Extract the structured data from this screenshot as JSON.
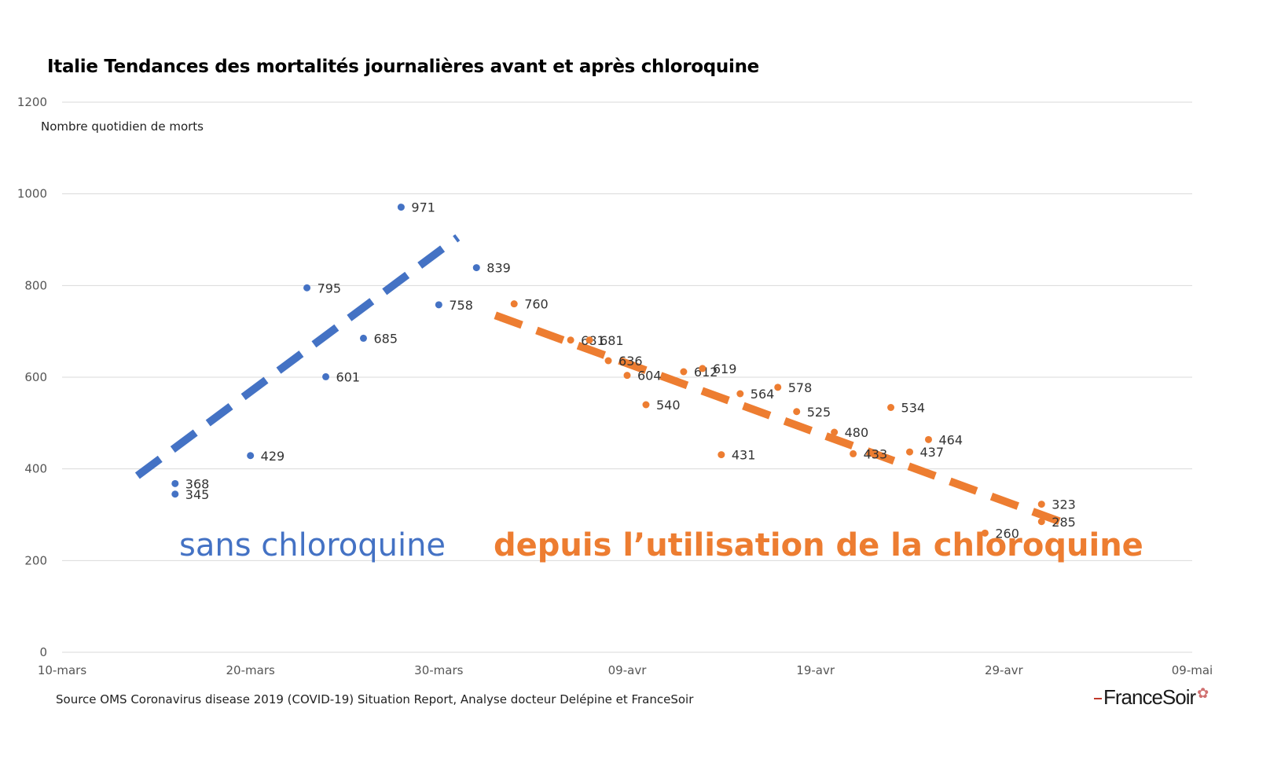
{
  "chart_data": {
    "type": "scatter",
    "title": "Italie Tendances des mortalités journalières avant et après chloroquine",
    "ylabel": "Nombre quotidien de morts",
    "xlabel": "",
    "source": "Source OMS Coronavirus disease 2019 (COVID-19) Situation Report, Analyse docteur Delépine et FranceSoir",
    "brand": "FranceSoir",
    "x_ticks": [
      "10-mars",
      "20-mars",
      "30-mars",
      "09-avr",
      "19-avr",
      "29-avr",
      "09-mai"
    ],
    "y_ticks": [
      "0",
      "200",
      "400",
      "600",
      "800",
      "1000",
      "1200"
    ],
    "xlim": [
      "2020-03-10",
      "2020-05-09"
    ],
    "ylim": [
      0,
      1200
    ],
    "grid": true,
    "series": [
      {
        "name": "sans chloroquine",
        "color": "#4472C4",
        "points": [
          {
            "x": "2020-03-16",
            "y": 368
          },
          {
            "x": "2020-03-16",
            "y": 345
          },
          {
            "x": "2020-03-20",
            "y": 429
          },
          {
            "x": "2020-03-23",
            "y": 795
          },
          {
            "x": "2020-03-24",
            "y": 601
          },
          {
            "x": "2020-03-26",
            "y": 685
          },
          {
            "x": "2020-03-28",
            "y": 971
          },
          {
            "x": "2020-03-30",
            "y": 758
          },
          {
            "x": "2020-04-01",
            "y": 839
          }
        ],
        "trend": {
          "from": {
            "x": "2020-03-14",
            "y": 385
          },
          "to": {
            "x": "2020-03-31",
            "y": 905
          }
        }
      },
      {
        "name": "depuis l’utilisation de la chloroquine",
        "color": "#ED7D31",
        "points": [
          {
            "x": "2020-04-03",
            "y": 760
          },
          {
            "x": "2020-04-06",
            "y": 681
          },
          {
            "x": "2020-04-07",
            "y": 681
          },
          {
            "x": "2020-04-08",
            "y": 636
          },
          {
            "x": "2020-04-09",
            "y": 604
          },
          {
            "x": "2020-04-10",
            "y": 540
          },
          {
            "x": "2020-04-12",
            "y": 612
          },
          {
            "x": "2020-04-13",
            "y": 619
          },
          {
            "x": "2020-04-14",
            "y": 431
          },
          {
            "x": "2020-04-15",
            "y": 564
          },
          {
            "x": "2020-04-17",
            "y": 578
          },
          {
            "x": "2020-04-18",
            "y": 525
          },
          {
            "x": "2020-04-20",
            "y": 480
          },
          {
            "x": "2020-04-21",
            "y": 433
          },
          {
            "x": "2020-04-23",
            "y": 534
          },
          {
            "x": "2020-04-24",
            "y": 437
          },
          {
            "x": "2020-04-25",
            "y": 464
          },
          {
            "x": "2020-04-28",
            "y": 260
          },
          {
            "x": "2020-05-01",
            "y": 323
          },
          {
            "x": "2020-05-01",
            "y": 285
          }
        ],
        "trend": {
          "from": {
            "x": "2020-04-02",
            "y": 735
          },
          "to": {
            "x": "2020-05-02",
            "y": 285
          }
        }
      }
    ]
  }
}
